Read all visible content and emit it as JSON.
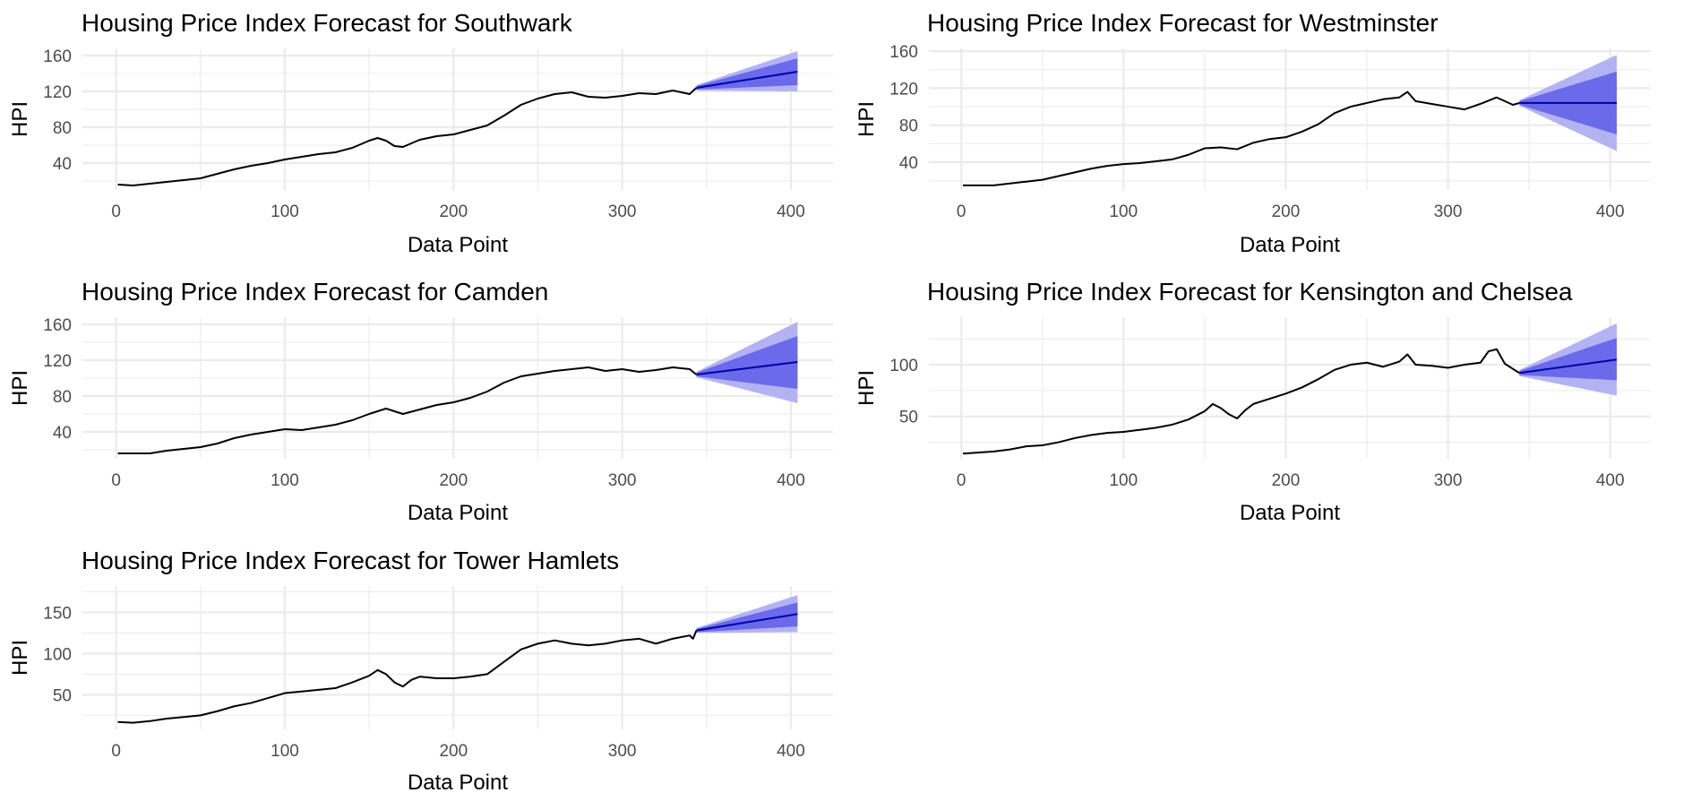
{
  "chart_data": [
    {
      "type": "line",
      "title": "Housing Price Index Forecast for Southwark",
      "xlabel": "Data Point",
      "ylabel": "HPI",
      "xlim": [
        -20,
        425
      ],
      "ylim": [
        10,
        168
      ],
      "xticks": [
        0,
        100,
        200,
        300,
        400
      ],
      "yticks": [
        40,
        80,
        120,
        160
      ],
      "history": {
        "x": [
          1,
          10,
          20,
          30,
          40,
          50,
          60,
          70,
          80,
          90,
          100,
          110,
          120,
          130,
          140,
          150,
          155,
          160,
          165,
          170,
          175,
          180,
          190,
          200,
          210,
          220,
          230,
          240,
          250,
          260,
          270,
          280,
          290,
          300,
          310,
          320,
          330,
          340,
          344
        ],
        "values": [
          16,
          15,
          17,
          19,
          21,
          23,
          28,
          33,
          37,
          40,
          44,
          47,
          50,
          52,
          57,
          65,
          68,
          65,
          59,
          58,
          62,
          66,
          70,
          72,
          77,
          82,
          93,
          105,
          112,
          117,
          119,
          114,
          113,
          115,
          118,
          117,
          121,
          117,
          124
        ]
      },
      "forecast": {
        "x": [
          344,
          404
        ],
        "mean": [
          124,
          142
        ],
        "lo80": [
          122,
          127
        ],
        "hi80": [
          126,
          157
        ],
        "lo95": [
          121,
          120
        ],
        "hi95": [
          127,
          165
        ]
      }
    },
    {
      "type": "line",
      "title": "Housing Price Index Forecast for Westminster",
      "xlabel": "Data Point",
      "ylabel": "HPI",
      "xlim": [
        -20,
        425
      ],
      "ylim": [
        10,
        163
      ],
      "xticks": [
        0,
        100,
        200,
        300,
        400
      ],
      "yticks": [
        40,
        80,
        120,
        160
      ],
      "history": {
        "x": [
          1,
          10,
          20,
          30,
          40,
          50,
          60,
          70,
          80,
          90,
          100,
          110,
          120,
          130,
          140,
          150,
          160,
          170,
          180,
          190,
          200,
          210,
          220,
          230,
          240,
          250,
          260,
          270,
          275,
          280,
          290,
          300,
          310,
          320,
          330,
          340,
          344
        ],
        "values": [
          15,
          15,
          15,
          17,
          19,
          21,
          25,
          29,
          33,
          36,
          38,
          39,
          41,
          43,
          48,
          55,
          56,
          54,
          61,
          65,
          67,
          73,
          81,
          93,
          100,
          104,
          108,
          110,
          116,
          106,
          103,
          100,
          97,
          103,
          110,
          102,
          104
        ]
      },
      "forecast": {
        "x": [
          344,
          404
        ],
        "mean": [
          104,
          104
        ],
        "lo80": [
          102,
          70
        ],
        "hi80": [
          106,
          138
        ],
        "lo95": [
          101,
          52
        ],
        "hi95": [
          107,
          156
        ]
      }
    },
    {
      "type": "line",
      "title": "Housing Price Index Forecast for Camden",
      "xlabel": "Data Point",
      "ylabel": "HPI",
      "xlim": [
        -20,
        425
      ],
      "ylim": [
        10,
        168
      ],
      "xticks": [
        0,
        100,
        200,
        300,
        400
      ],
      "yticks": [
        40,
        80,
        120,
        160
      ],
      "history": {
        "x": [
          1,
          10,
          20,
          30,
          40,
          50,
          60,
          70,
          80,
          90,
          100,
          110,
          120,
          130,
          140,
          150,
          160,
          170,
          180,
          190,
          200,
          210,
          220,
          230,
          240,
          250,
          260,
          270,
          280,
          290,
          300,
          310,
          320,
          330,
          340,
          344
        ],
        "values": [
          16,
          16,
          16,
          19,
          21,
          23,
          27,
          33,
          37,
          40,
          43,
          42,
          45,
          48,
          53,
          60,
          66,
          60,
          65,
          70,
          73,
          78,
          85,
          95,
          102,
          105,
          108,
          110,
          112,
          108,
          110,
          107,
          109,
          112,
          110,
          104
        ]
      },
      "forecast": {
        "x": [
          344,
          404
        ],
        "mean": [
          104,
          118
        ],
        "lo80": [
          102,
          88
        ],
        "hi80": [
          106,
          147
        ],
        "lo95": [
          101,
          72
        ],
        "hi95": [
          107,
          163
        ]
      }
    },
    {
      "type": "line",
      "title": "Housing Price Index Forecast for Kensington and Chelsea",
      "xlabel": "Data Point",
      "ylabel": "HPI",
      "xlim": [
        -20,
        425
      ],
      "ylim": [
        9,
        146
      ],
      "xticks": [
        0,
        100,
        200,
        300,
        400
      ],
      "yticks": [
        50,
        100
      ],
      "history": {
        "x": [
          1,
          10,
          20,
          30,
          40,
          50,
          60,
          70,
          80,
          90,
          100,
          110,
          120,
          130,
          140,
          150,
          155,
          160,
          165,
          170,
          175,
          180,
          190,
          200,
          210,
          220,
          230,
          240,
          250,
          260,
          270,
          275,
          280,
          290,
          300,
          310,
          320,
          325,
          330,
          335,
          340,
          344
        ],
        "values": [
          14,
          15,
          16,
          18,
          21,
          22,
          25,
          29,
          32,
          34,
          35,
          37,
          39,
          42,
          47,
          55,
          62,
          58,
          52,
          48,
          56,
          62,
          67,
          72,
          78,
          86,
          95,
          100,
          102,
          98,
          103,
          110,
          100,
          99,
          97,
          100,
          102,
          113,
          115,
          101,
          96,
          92
        ]
      },
      "forecast": {
        "x": [
          344,
          404
        ],
        "mean": [
          92,
          105
        ],
        "lo80": [
          90,
          85
        ],
        "hi80": [
          94,
          126
        ],
        "lo95": [
          89,
          70
        ],
        "hi95": [
          95,
          140
        ]
      }
    },
    {
      "type": "line",
      "title": "Housing Price Index Forecast for Tower Hamlets",
      "xlabel": "Data Point",
      "ylabel": "HPI",
      "xlim": [
        -20,
        425
      ],
      "ylim": [
        8,
        182
      ],
      "xticks": [
        0,
        100,
        200,
        300,
        400
      ],
      "yticks": [
        50,
        100,
        150
      ],
      "history": {
        "x": [
          1,
          10,
          20,
          30,
          40,
          50,
          60,
          70,
          80,
          90,
          100,
          110,
          120,
          130,
          140,
          150,
          155,
          160,
          165,
          170,
          175,
          180,
          190,
          200,
          210,
          220,
          230,
          240,
          250,
          260,
          270,
          280,
          290,
          300,
          310,
          320,
          330,
          340,
          342,
          344
        ],
        "values": [
          17,
          16,
          18,
          21,
          23,
          25,
          30,
          36,
          40,
          46,
          52,
          54,
          56,
          58,
          65,
          73,
          80,
          75,
          65,
          60,
          68,
          72,
          70,
          70,
          72,
          75,
          90,
          105,
          112,
          116,
          112,
          110,
          112,
          116,
          118,
          112,
          118,
          122,
          118,
          128
        ]
      },
      "forecast": {
        "x": [
          344,
          404
        ],
        "mean": [
          128,
          148
        ],
        "lo80": [
          126,
          133
        ],
        "hi80": [
          130,
          162
        ],
        "lo95": [
          125,
          126
        ],
        "hi95": [
          131,
          171
        ]
      }
    }
  ]
}
